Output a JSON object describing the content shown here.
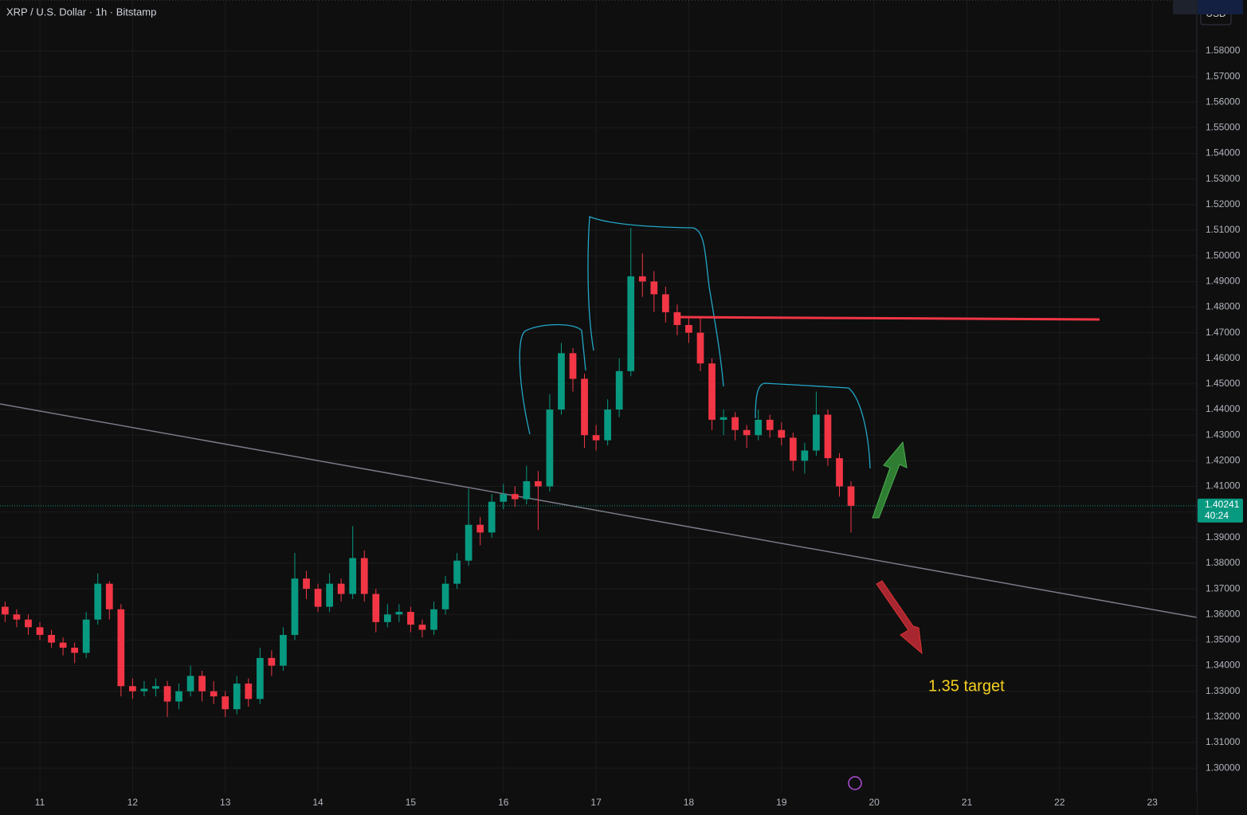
{
  "chart_data": {
    "type": "candlestick",
    "title": "XRP / U.S. Dollar · 1h · Bitstamp",
    "currency": "USD",
    "annotation": "1.35 target",
    "up_color": "#089981",
    "down_color": "#f23645",
    "grid": true,
    "xlim": [
      10.57,
      23.48
    ],
    "ylim": [
      1.2904,
      1.5999
    ],
    "xticks": [
      11,
      12,
      13,
      14,
      15,
      16,
      17,
      18,
      19,
      20,
      21,
      22,
      23
    ],
    "yticks": [
      {
        "value": 1.3,
        "label": "1.30000"
      },
      {
        "value": 1.31,
        "label": "1.31000"
      },
      {
        "value": 1.32,
        "label": "1.32000"
      },
      {
        "value": 1.33,
        "label": "1.33000"
      },
      {
        "value": 1.34,
        "label": "1.34000"
      },
      {
        "value": 1.35,
        "label": "1.35000"
      },
      {
        "value": 1.36,
        "label": "1.36000"
      },
      {
        "value": 1.37,
        "label": "1.37000"
      },
      {
        "value": 1.38,
        "label": "1.38000"
      },
      {
        "value": 1.39,
        "label": "1.39000"
      },
      {
        "value": 1.4,
        "label": "1.40000"
      },
      {
        "value": 1.41,
        "label": "1.41000"
      },
      {
        "value": 1.42,
        "label": "1.42000"
      },
      {
        "value": 1.43,
        "label": "1.43000"
      },
      {
        "value": 1.44,
        "label": "1.44000"
      },
      {
        "value": 1.45,
        "label": "1.45000"
      },
      {
        "value": 1.46,
        "label": "1.46000"
      },
      {
        "value": 1.47,
        "label": "1.47000"
      },
      {
        "value": 1.48,
        "label": "1.48000"
      },
      {
        "value": 1.49,
        "label": "1.49000"
      },
      {
        "value": 1.5,
        "label": "1.50000"
      },
      {
        "value": 1.51,
        "label": "1.51000"
      },
      {
        "value": 1.52,
        "label": "1.52000"
      },
      {
        "value": 1.53,
        "label": "1.53000"
      },
      {
        "value": 1.54,
        "label": "1.54000"
      },
      {
        "value": 1.55,
        "label": "1.55000"
      },
      {
        "value": 1.56,
        "label": "1.56000"
      },
      {
        "value": 1.57,
        "label": "1.57000"
      },
      {
        "value": 1.58,
        "label": "1.58000"
      }
    ],
    "high": [
      1.365,
      1.362,
      1.36,
      1.357,
      1.354,
      1.351,
      1.349,
      1.361,
      1.376,
      1.373,
      1.364,
      1.335,
      1.334,
      1.335,
      1.334,
      1.333,
      1.34,
      1.338,
      1.334,
      1.33,
      1.336,
      1.335,
      1.347,
      1.346,
      1.355,
      1.384,
      1.377,
      1.372,
      1.376,
      1.374,
      1.3945,
      1.385,
      1.37,
      1.364,
      1.364,
      1.363,
      1.358,
      1.365,
      1.375,
      1.384,
      1.409,
      1.398,
      1.407,
      1.411,
      1.41,
      1.418,
      1.416,
      1.446,
      1.466,
      1.464,
      1.454,
      1.434,
      1.444,
      1.46,
      1.51094,
      1.501,
      1.494,
      1.488,
      1.481,
      1.476,
      1.476,
      1.46,
      1.44,
      1.439,
      1.434,
      1.44,
      1.438,
      1.435,
      1.431,
      1.427,
      1.447,
      1.44,
      1.423,
      1.412
    ],
    "low": [
      1.357,
      1.355,
      1.352,
      1.35,
      1.347,
      1.344,
      1.341,
      1.343,
      1.356,
      1.358,
      1.328,
      1.327,
      1.328,
      1.328,
      1.31997,
      1.323,
      1.328,
      1.326,
      1.325,
      1.32,
      1.321,
      1.324,
      1.325,
      1.336,
      1.338,
      1.35,
      1.366,
      1.361,
      1.361,
      1.365,
      1.366,
      1.365,
      1.353,
      1.355,
      1.357,
      1.353,
      1.351,
      1.352,
      1.36,
      1.37,
      1.379,
      1.387,
      1.39,
      1.401,
      1.402,
      1.403,
      1.393,
      1.408,
      1.438,
      1.447,
      1.425,
      1.424,
      1.426,
      1.437,
      1.453,
      1.484,
      1.478,
      1.474,
      1.469,
      1.466,
      1.455,
      1.432,
      1.43,
      1.428,
      1.425,
      1.428,
      1.429,
      1.426,
      1.416,
      1.415,
      1.422,
      1.418,
      1.406,
      1.392
    ],
    "last": {
      "value": 1.40241,
      "countdown": "40:24"
    },
    "x": [
      10.625,
      10.75,
      10.875,
      11.0,
      11.125,
      11.25,
      11.375,
      11.5,
      11.625,
      11.75,
      11.875,
      12.0,
      12.125,
      12.25,
      12.375,
      12.5,
      12.625,
      12.75,
      12.875,
      13.0,
      13.125,
      13.25,
      13.375,
      13.5,
      13.625,
      13.75,
      13.875,
      14.0,
      14.125,
      14.25,
      14.375,
      14.5,
      14.625,
      14.75,
      14.875,
      15.0,
      15.125,
      15.25,
      15.375,
      15.5,
      15.625,
      15.75,
      15.875,
      16.0,
      16.125,
      16.25,
      16.375,
      16.5,
      16.625,
      16.75,
      16.875,
      17.0,
      17.125,
      17.25,
      17.375,
      17.5,
      17.625,
      17.75,
      17.875,
      18.0,
      18.125,
      18.25,
      18.375,
      18.5,
      18.625,
      18.75,
      18.875,
      19.0,
      19.125,
      19.25,
      19.375,
      19.5,
      19.625,
      19.75
    ],
    "open": [
      1.363,
      1.36,
      1.358,
      1.355,
      1.352,
      1.349,
      1.347,
      1.345,
      1.358,
      1.372,
      1.362,
      1.332,
      1.33,
      1.331,
      1.332,
      1.326,
      1.33,
      1.336,
      1.33,
      1.328,
      1.323,
      1.333,
      1.327,
      1.343,
      1.34,
      1.352,
      1.374,
      1.37,
      1.363,
      1.372,
      1.368,
      1.382,
      1.368,
      1.357,
      1.36,
      1.361,
      1.356,
      1.354,
      1.362,
      1.372,
      1.381,
      1.395,
      1.392,
      1.404,
      1.407,
      1.405,
      1.412,
      1.41,
      1.44,
      1.462,
      1.452,
      1.43,
      1.428,
      1.44,
      1.455,
      1.492,
      1.49,
      1.485,
      1.478,
      1.473,
      1.47,
      1.458,
      1.436,
      1.437,
      1.432,
      1.43,
      1.436,
      1.432,
      1.429,
      1.42,
      1.424,
      1.438,
      1.421,
      1.41
    ],
    "close": [
      1.36,
      1.358,
      1.355,
      1.352,
      1.349,
      1.347,
      1.345,
      1.358,
      1.372,
      1.362,
      1.332,
      1.33,
      1.331,
      1.332,
      1.326,
      1.33,
      1.336,
      1.33,
      1.328,
      1.323,
      1.333,
      1.327,
      1.343,
      1.34,
      1.352,
      1.374,
      1.37,
      1.363,
      1.372,
      1.368,
      1.382,
      1.368,
      1.357,
      1.36,
      1.361,
      1.356,
      1.354,
      1.362,
      1.372,
      1.381,
      1.395,
      1.392,
      1.404,
      1.407,
      1.405,
      1.412,
      1.41,
      1.44,
      1.462,
      1.452,
      1.43,
      1.428,
      1.44,
      1.455,
      1.492,
      1.49,
      1.485,
      1.478,
      1.473,
      1.47,
      1.458,
      1.436,
      1.437,
      1.432,
      1.43,
      1.436,
      1.432,
      1.429,
      1.42,
      1.424,
      1.438,
      1.421,
      1.41,
      1.40241
    ]
  }
}
